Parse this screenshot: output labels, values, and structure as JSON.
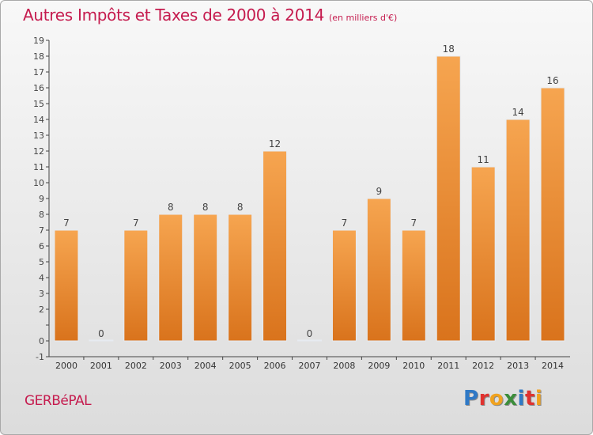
{
  "title": "Autres Impôts et Taxes de 2000 à 2014",
  "subtitle": "(en milliers d'€)",
  "town": "GERBéPAL",
  "brand": {
    "letters": [
      "P",
      "r",
      "o",
      "x",
      "i",
      "t",
      "i"
    ],
    "colors": [
      "#2f79c6",
      "#e0322f",
      "#f0a21f",
      "#3b8d3a",
      "#2f79c6",
      "#e0322f",
      "#f0a21f"
    ]
  },
  "colors": {
    "bar_top": "#f6a550",
    "bar_bottom": "#d9731c",
    "title": "#c51b4e"
  },
  "chart_data": {
    "type": "bar",
    "categories": [
      "2000",
      "2001",
      "2002",
      "2003",
      "2004",
      "2005",
      "2006",
      "2007",
      "2008",
      "2009",
      "2010",
      "2011",
      "2012",
      "2013",
      "2014"
    ],
    "values": [
      7,
      0,
      7,
      8,
      8,
      8,
      12,
      0,
      7,
      9,
      7,
      18,
      11,
      14,
      16
    ],
    "data_labels": [
      "7",
      "0",
      "7",
      "8",
      "8",
      "8",
      "12",
      "0",
      "7",
      "9",
      "7",
      "18",
      "11",
      "14",
      "16"
    ],
    "y_tick_labels": [
      "-1",
      "0",
      "",
      "2",
      "3",
      "4",
      "5",
      "6",
      "7",
      "8",
      "9",
      "10",
      "11",
      "12",
      "13",
      "14",
      "15",
      "16",
      "17",
      "18",
      "19"
    ],
    "ylim": [
      -1,
      19
    ],
    "grid": false,
    "title": "Autres Impôts et Taxes de 2000 à 2014",
    "xlabel": "",
    "ylabel": ""
  }
}
